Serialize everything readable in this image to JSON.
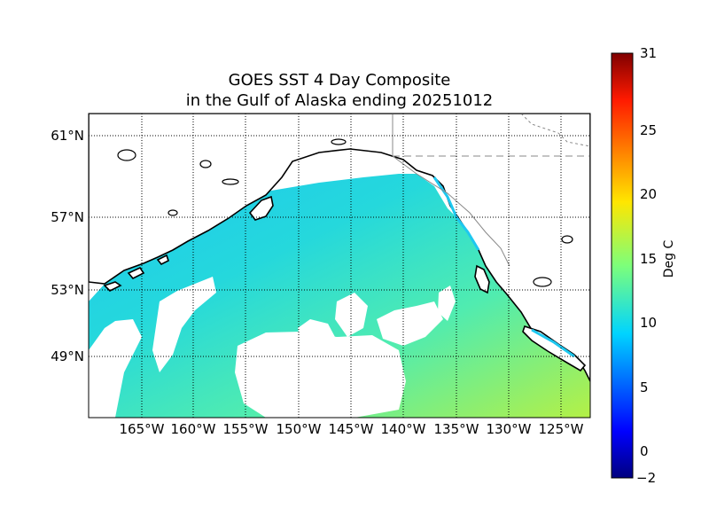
{
  "title": {
    "line1": "GOES SST 4 Day Composite",
    "line2": "in the Gulf of Alaska ending 20251012"
  },
  "map": {
    "region": "Gulf of Alaska",
    "lon_labels": [
      "165°W",
      "160°W",
      "155°W",
      "150°W",
      "145°W",
      "140°W",
      "135°W",
      "130°W",
      "125°W"
    ],
    "lat_labels": [
      "61°N",
      "57°N",
      "53°N",
      "49°N"
    ],
    "gridlines": true
  },
  "colorbar": {
    "unit": "Deg C",
    "ticks": [
      "31",
      "25",
      "20",
      "15",
      "10",
      "5",
      "0",
      "−2"
    ],
    "colormap": "jet",
    "range": [
      -2,
      31
    ]
  },
  "colors": {
    "land": "#ffffff",
    "coastline": "#000000",
    "missing": "#ffffff",
    "sst_cool": "#1ec8f0",
    "sst_mid": "#3ce6b4",
    "sst_warm": "#a0f050"
  }
}
